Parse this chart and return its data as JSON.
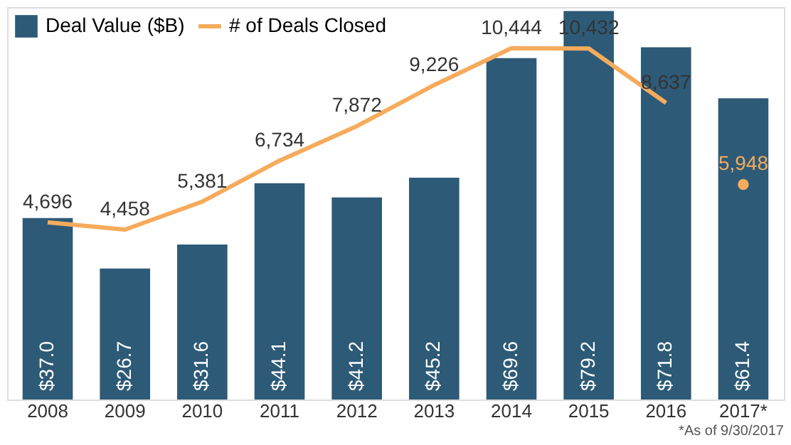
{
  "chart_data": {
    "type": "bar",
    "categories": [
      "2008",
      "2009",
      "2010",
      "2011",
      "2012",
      "2013",
      "2014",
      "2015",
      "2016",
      "2017*"
    ],
    "ylim": [
      0,
      80
    ],
    "y2lim": [
      -1150,
      11800
    ],
    "tick_labels": "x",
    "legend": "top left",
    "series": [
      {
        "name": "Deal Value ($B)",
        "color": "#2d5a77",
        "values": [
          37.0,
          26.7,
          31.6,
          44.1,
          41.2,
          45.2,
          69.6,
          79.2,
          71.8,
          61.4
        ],
        "value_labels": [
          "$37.0",
          "$26.7",
          "$31.6",
          "$44.1",
          "$41.2",
          "$45.2",
          "$69.6",
          "$79.2",
          "$71.8",
          "$61.4"
        ]
      },
      {
        "name": "# of Deals Closed",
        "type": "line",
        "line_style": "solid",
        "axis": "y2",
        "color": "#f6ab5c",
        "values": [
          4696,
          4458,
          5381,
          6734,
          7872,
          9226,
          10444,
          10432,
          8637,
          null
        ],
        "value_labels": [
          "4,696",
          "4,458",
          "5,381",
          "6,734",
          "7,872",
          "9,226",
          "10,444",
          "10,432",
          "8,637",
          null
        ]
      },
      {
        "type": "scatter",
        "axis": "y2",
        "marker": "circle",
        "color": "#f6ab5c",
        "values": [
          null,
          null,
          null,
          null,
          null,
          null,
          null,
          null,
          null,
          5948
        ],
        "value_labels": [
          null,
          null,
          null,
          null,
          null,
          null,
          null,
          null,
          null,
          "5,948"
        ]
      }
    ],
    "annotations": [
      "*As of 9/30/2017"
    ]
  }
}
